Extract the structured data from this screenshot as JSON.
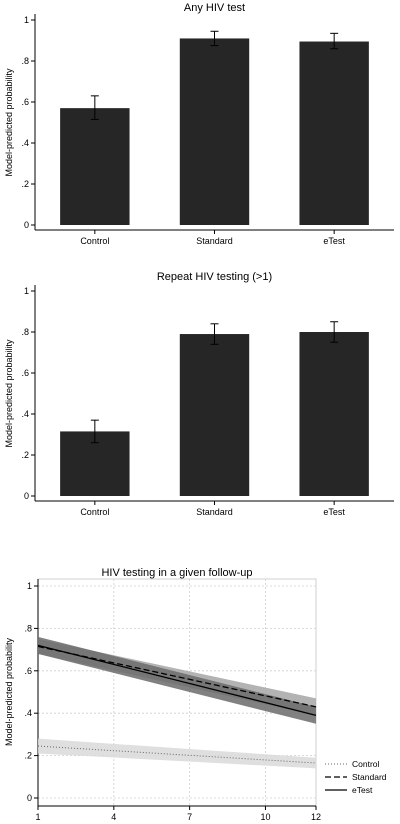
{
  "chart_data": [
    {
      "type": "bar",
      "title": "Any HIV test",
      "xlabel": "",
      "ylabel": "Model-predicted probability",
      "ylim": [
        0,
        1
      ],
      "yticks": [
        "0",
        ".2",
        ".4",
        ".6",
        ".8",
        "1"
      ],
      "categories": [
        "Control",
        "Standard",
        "eTest"
      ],
      "values": [
        0.57,
        0.91,
        0.895
      ],
      "ci_low": [
        0.515,
        0.875,
        0.86
      ],
      "ci_high": [
        0.63,
        0.945,
        0.935
      ],
      "bar_color": "#262626",
      "grid": false
    },
    {
      "type": "bar",
      "title": "Repeat HIV testing (>1)",
      "xlabel": "",
      "ylabel": "Model-predicted probability",
      "ylim": [
        0,
        1
      ],
      "yticks": [
        "0",
        ".2",
        ".4",
        ".6",
        ".8",
        "1"
      ],
      "categories": [
        "Control",
        "Standard",
        "eTest"
      ],
      "values": [
        0.315,
        0.79,
        0.8
      ],
      "ci_low": [
        0.26,
        0.74,
        0.75
      ],
      "ci_high": [
        0.37,
        0.84,
        0.85
      ],
      "bar_color": "#262626",
      "grid": false
    },
    {
      "type": "line",
      "title": "HIV testing in a given follow-up",
      "xlabel": "",
      "ylabel": "Model-predicted probability",
      "xlim": [
        1,
        12
      ],
      "ylim": [
        0,
        1
      ],
      "xticks": [
        1,
        4,
        7,
        10,
        12
      ],
      "yticks": [
        "0",
        ".2",
        ".4",
        ".6",
        ".8",
        "1"
      ],
      "grid": true,
      "legend_position": "bottom-right",
      "x": [
        1,
        12
      ],
      "series": [
        {
          "name": "Control",
          "style": "dotted",
          "values": [
            0.245,
            0.165
          ],
          "ci_low": [
            0.21,
            0.14
          ],
          "ci_high": [
            0.28,
            0.19
          ],
          "band_color": "#d9d9d9"
        },
        {
          "name": "Standard",
          "style": "dashed",
          "values": [
            0.715,
            0.43
          ],
          "ci_low": [
            0.68,
            0.39
          ],
          "ci_high": [
            0.75,
            0.47
          ],
          "band_color": "#a6a6a6"
        },
        {
          "name": "eTest",
          "style": "solid",
          "values": [
            0.72,
            0.39
          ],
          "ci_low": [
            0.68,
            0.35
          ],
          "ci_high": [
            0.76,
            0.43
          ],
          "band_color": "#6b6b6b"
        }
      ]
    }
  ]
}
